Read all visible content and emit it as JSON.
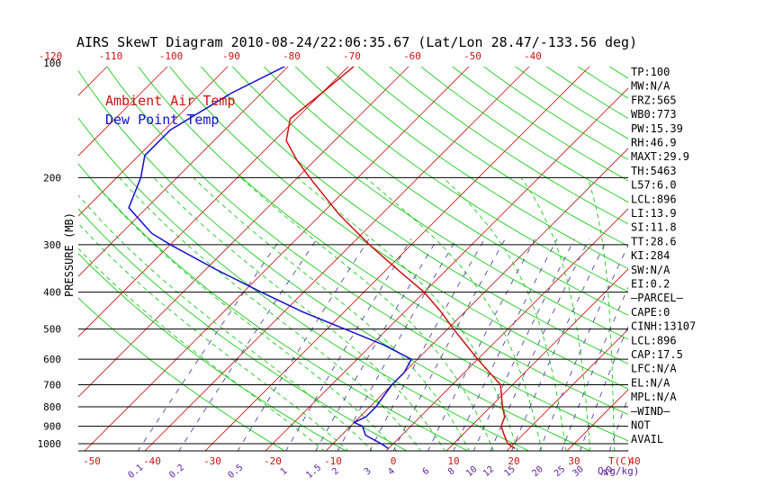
{
  "chart_data": {
    "type": "line",
    "title": "AIRS SkewT Diagram 2010-08-24/22:06:35.67 (Lat/Lon 28.47/-133.56 deg)",
    "ylabel": "PRESSURE (MB)",
    "xlabel": "T(C)",
    "mixing_ratio_label": "Q(g/kg)",
    "ylim": [
      1050,
      100
    ],
    "y_log_scale": true,
    "pressure_ticks": [
      100,
      200,
      300,
      400,
      500,
      600,
      700,
      800,
      900,
      1000
    ],
    "pressure_ticks_labels": [
      "100",
      "200",
      "300",
      "400",
      "500",
      "600",
      "700",
      "800",
      "900",
      "1000"
    ],
    "top_temp_ticks": [
      "-120",
      "-110",
      "-100",
      "-90",
      "-80",
      "-70",
      "-60",
      "-50",
      "-40"
    ],
    "bottom_temp_ticks": [
      "-50",
      "-40",
      "-30",
      "-20",
      "-10",
      "0",
      "10",
      "20",
      "30",
      "40"
    ],
    "mixing_ratio_ticks": [
      "0.1",
      "0.2",
      "0.5",
      "1",
      "1.5",
      "2",
      "3",
      "4",
      "6",
      "8",
      "10",
      "12",
      "15",
      "20",
      "25",
      "30",
      "40"
    ],
    "legend": [
      "Ambient Air Temp",
      "Dew Point Temp"
    ],
    "series": [
      {
        "name": "Ambient Air Temp",
        "color": "#d01010",
        "points": [
          {
            "p": 100,
            "t": -69
          },
          {
            "p": 120,
            "t": -70
          },
          {
            "p": 140,
            "t": -71
          },
          {
            "p": 160,
            "t": -68
          },
          {
            "p": 180,
            "t": -63
          },
          {
            "p": 200,
            "t": -58
          },
          {
            "p": 250,
            "t": -47
          },
          {
            "p": 300,
            "t": -37
          },
          {
            "p": 350,
            "t": -28
          },
          {
            "p": 400,
            "t": -20
          },
          {
            "p": 450,
            "t": -14
          },
          {
            "p": 500,
            "t": -9
          },
          {
            "p": 600,
            "t": 0
          },
          {
            "p": 700,
            "t": 8
          },
          {
            "p": 800,
            "t": 12
          },
          {
            "p": 850,
            "t": 14
          },
          {
            "p": 900,
            "t": 15
          },
          {
            "p": 950,
            "t": 17
          },
          {
            "p": 1000,
            "t": 19
          },
          {
            "p": 1030,
            "t": 21
          }
        ]
      },
      {
        "name": "Dew Point Temp",
        "color": "#1010d0",
        "points": [
          {
            "p": 100,
            "t": -80
          },
          {
            "p": 120,
            "t": -85
          },
          {
            "p": 150,
            "t": -89
          },
          {
            "p": 175,
            "t": -89
          },
          {
            "p": 200,
            "t": -86
          },
          {
            "p": 240,
            "t": -83
          },
          {
            "p": 280,
            "t": -75
          },
          {
            "p": 300,
            "t": -70
          },
          {
            "p": 350,
            "t": -58
          },
          {
            "p": 400,
            "t": -47
          },
          {
            "p": 450,
            "t": -37
          },
          {
            "p": 500,
            "t": -27
          },
          {
            "p": 550,
            "t": -18
          },
          {
            "p": 600,
            "t": -11
          },
          {
            "p": 650,
            "t": -10
          },
          {
            "p": 700,
            "t": -10
          },
          {
            "p": 800,
            "t": -9
          },
          {
            "p": 850,
            "t": -9
          },
          {
            "p": 880,
            "t": -10
          },
          {
            "p": 900,
            "t": -8
          },
          {
            "p": 950,
            "t": -6
          },
          {
            "p": 1000,
            "t": -2
          },
          {
            "p": 1030,
            "t": 0
          }
        ]
      }
    ],
    "indices": [
      "TP:100",
      "MW:N/A",
      "FRZ:565",
      "WB0:773",
      "PW:15.39",
      "RH:46.9",
      "MAXT:29.9",
      "TH:5463",
      "L57:6.0",
      "LCL:896",
      "LI:13.9",
      "SI:11.8",
      "TT:28.6",
      "KI:284",
      "SW:N/A",
      "EI:0.2",
      "—PARCEL—",
      "CAPE:0",
      "CINH:13107",
      "LCL:896",
      "CAP:17.5",
      "LFC:N/A",
      "EL:N/A",
      "MPL:N/A",
      "—WIND—",
      "NOT",
      "AVAIL"
    ],
    "colors": {
      "isotherm": "#d01010",
      "dry_adiabat": "#00c800",
      "moist_adiabat": "#00c800",
      "mixing_ratio": "#4030a0",
      "isobar": "#000000",
      "tick_red": "#d01010",
      "tick_purple": "#6020a0"
    }
  }
}
